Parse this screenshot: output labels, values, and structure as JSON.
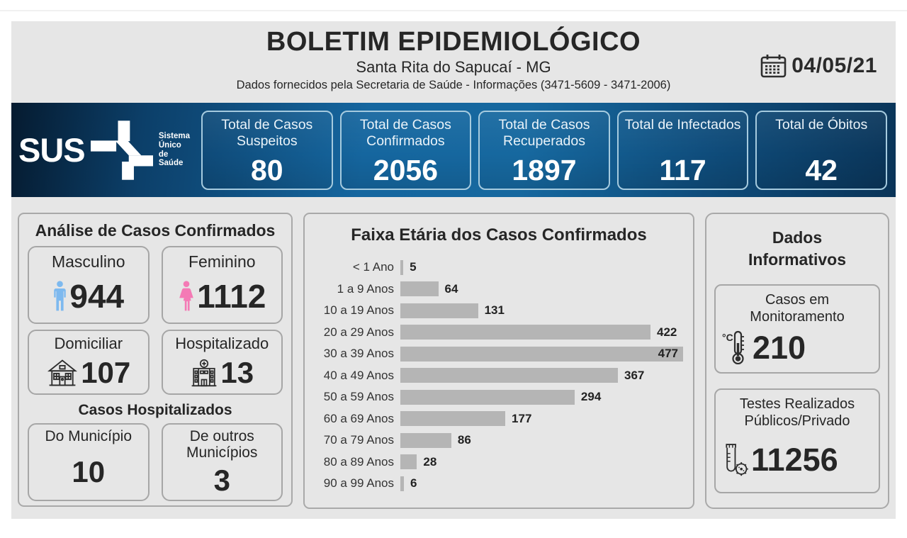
{
  "colors": {
    "panel_gray": "#e6e6e6",
    "sus_blue_dark": "#06223c",
    "sus_blue": "#15669f",
    "male_icon": "#7db9ef",
    "female_icon": "#f47ab5",
    "dark_icon": "#2d2d2d"
  },
  "header": {
    "title": "BOLETIM EPIDEMIOLÓGICO",
    "subtitle": "Santa Rita do Sapucaí - MG",
    "info": "Dados fornecidos pela Secretaria de Saúde - Informações (3471-5609 - 3471-2006)",
    "date": "04/05/21"
  },
  "sus_bar": {
    "logo_text": "SUS",
    "logo_caption": "Sistema\nÚnico\nde Saúde",
    "stats": [
      {
        "label": "Total de Casos Suspeitos",
        "value": "80"
      },
      {
        "label": "Total de Casos Confirmados",
        "value": "2056"
      },
      {
        "label": "Total de Casos Recuperados",
        "value": "1897"
      },
      {
        "label": "Total de Infectados",
        "value": "117"
      },
      {
        "label": "Total de Óbitos",
        "value": "42"
      }
    ]
  },
  "analysis": {
    "title": "Análise de Casos Confirmados",
    "gender_cards": [
      {
        "label": "Masculino",
        "value": "944",
        "icon": "male-icon"
      },
      {
        "label": "Feminino",
        "value": "1112",
        "icon": "female-icon"
      }
    ],
    "care_cards": [
      {
        "label": "Domiciliar",
        "value": "107",
        "icon": "house-icon"
      },
      {
        "label": "Hospitalizado",
        "value": "13",
        "icon": "hospital-icon"
      }
    ],
    "hospitalized_title": "Casos Hospitalizados",
    "hospitalized_cards": [
      {
        "label": "Do Município",
        "value": "10"
      },
      {
        "label": "De outros Municípios",
        "value": "3"
      }
    ]
  },
  "chart_data": {
    "type": "bar",
    "orientation": "horizontal",
    "title": "Faixa Etária dos Casos Confirmados",
    "categories": [
      "< 1 Ano",
      "1 a 9 Anos",
      "10 a 19 Anos",
      "20 a 29 Anos",
      "30 a 39 Anos",
      "40 a 49 Anos",
      "50 a 59 Anos",
      "60 a 69 Anos",
      "70 a 79 Anos",
      "80 a 89 Anos",
      "90 a 99 Anos"
    ],
    "values": [
      5,
      64,
      131,
      422,
      477,
      367,
      294,
      177,
      86,
      28,
      6
    ],
    "bar_color": "#b5b5b5",
    "xlim": [
      0,
      477
    ],
    "value_labels": "end-of-bar",
    "grid": false,
    "legend": false
  },
  "info_panel": {
    "title": "Dados Informativos",
    "cards": [
      {
        "label": "Casos em Monitoramento",
        "value": "210",
        "icon": "thermometer-icon"
      },
      {
        "label": "Testes Realizados Públicos/Privado",
        "value": "11256",
        "icon": "test-tube-icon"
      }
    ]
  }
}
